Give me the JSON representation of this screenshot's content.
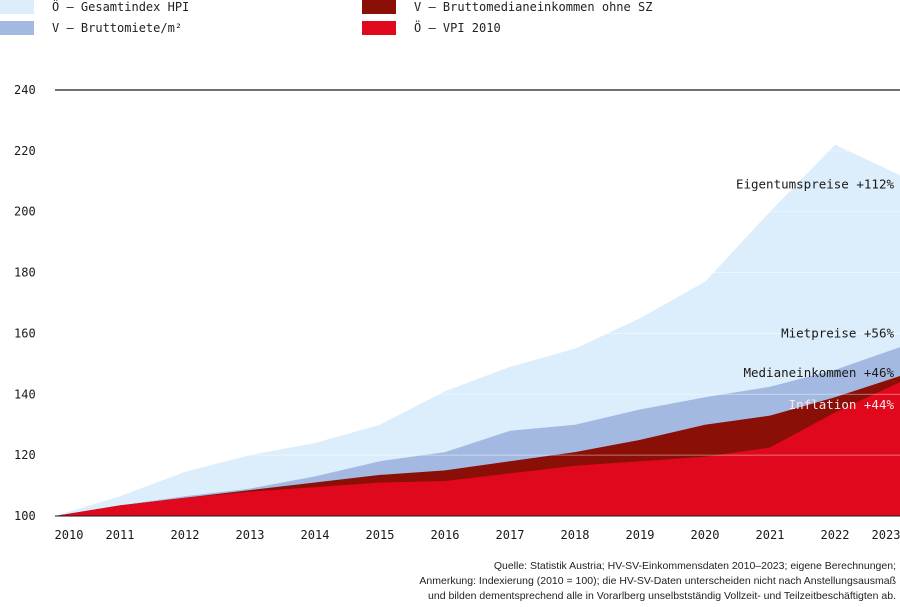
{
  "legend": [
    {
      "label": "Ö – Gesamtindex HPI",
      "color": "#dcedfb"
    },
    {
      "label": "V – Bruttomiete/m²",
      "color": "#a3b9e2"
    },
    {
      "label": "V – Bruttomedianeinkommen ohne SZ",
      "color": "#8a0f06"
    },
    {
      "label": "Ö – VPI 2010",
      "color": "#e0081c"
    }
  ],
  "footer": {
    "line1": "Quelle: Statistik Austria; HV-SV-Einkommensdaten 2010–2023; eigene Berechnungen;",
    "line2": "Anmerkung: Indexierung (2010 = 100); die HV-SV-Daten unterscheiden nicht nach Anstellungsausmaß",
    "line3": "und bilden dementsprechend alle in Vorarlberg unselbstständig Vollzeit- und Teilzeitbeschäftigten ab."
  },
  "chart_data": {
    "type": "area",
    "x": [
      2010,
      2011,
      2012,
      2013,
      2014,
      2015,
      2016,
      2017,
      2018,
      2019,
      2020,
      2021,
      2022,
      2023
    ],
    "ylim": [
      100,
      240
    ],
    "yticks": [
      100,
      120,
      140,
      160,
      180,
      200,
      220,
      240
    ],
    "series": [
      {
        "name": "Ö – Gesamtindex HPI",
        "color": "#dcedfb",
        "values": [
          100,
          106.5,
          114.5,
          120,
          124,
          130,
          141,
          149,
          155,
          165,
          177,
          200,
          222,
          212
        ]
      },
      {
        "name": "V – Bruttomiete/m²",
        "color": "#a3b9e2",
        "values": [
          100,
          103.5,
          106.5,
          109,
          113,
          118,
          121,
          128,
          130,
          135,
          139,
          142.5,
          148,
          155.5
        ]
      },
      {
        "name": "V – Bruttomedianeinkommen ohne SZ",
        "color": "#8a0f06",
        "values": [
          100,
          103.5,
          106,
          108.5,
          111,
          113.5,
          115,
          118,
          121,
          125,
          130,
          133,
          139,
          146
        ]
      },
      {
        "name": "Ö – VPI 2010",
        "color": "#e0081c",
        "values": [
          100,
          103.5,
          106,
          108,
          109.5,
          111,
          111.5,
          114,
          116.5,
          118,
          119.5,
          122.5,
          134,
          144
        ]
      }
    ],
    "annotations": [
      {
        "text": "Eigentumspreise +112%",
        "y": 209
      },
      {
        "text": "Mietpreise +56%",
        "y": 160
      },
      {
        "text": "Medianeinkommen +46%",
        "y": 147
      },
      {
        "text": "Inflation +44%",
        "y": 136.5
      }
    ]
  }
}
